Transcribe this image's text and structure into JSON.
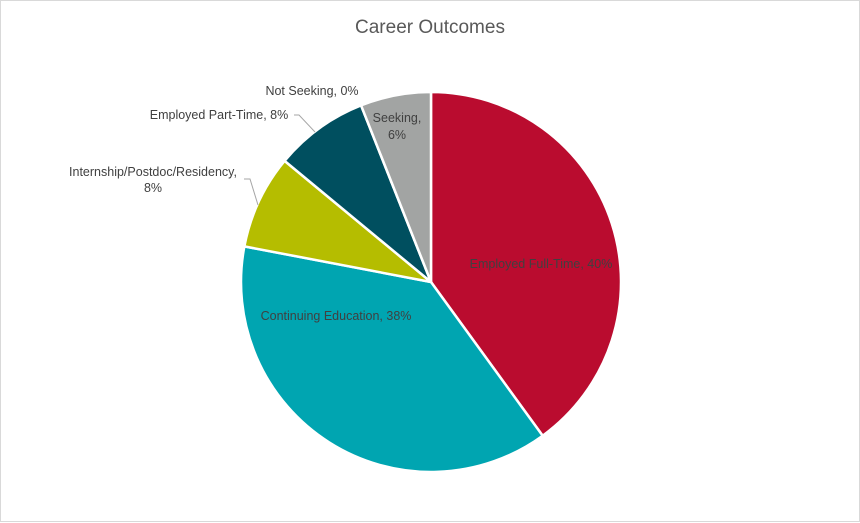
{
  "chart_data": {
    "type": "pie",
    "title": "Career Outcomes",
    "categories": [
      "Employed Full-Time",
      "Continuing Education",
      "Internship/Postdoc/Residency",
      "Employed Part-Time",
      "Not Seeking",
      "Seeking"
    ],
    "values": [
      40,
      38,
      8,
      8,
      0,
      6
    ],
    "unit": "%",
    "colors": [
      "#ba0c2f",
      "#00a5b1",
      "#b5bd00",
      "#004f5f",
      "#7f7f7f",
      "#a2a4a3"
    ],
    "start_angle_deg": 0,
    "direction": "clockwise",
    "legend": "none",
    "data_labels": [
      "Employed Full-Time, 40%",
      "Continuing Education, 38%",
      "Internship/Postdoc/Residency, 8%",
      "Employed Part-Time, 8%",
      "Not Seeking, 0%",
      "Seeking, 6%"
    ]
  },
  "labels": {
    "full_time": "Employed Full-Time, 40%",
    "continuing": "Continuing Education, 38%",
    "internship_line1": "Internship/Postdoc/Residency,",
    "internship_line2": "8%",
    "part_time": "Employed Part-Time, 8%",
    "not_seeking": "Not Seeking, 0%",
    "seeking_line1": "Seeking,",
    "seeking_line2": "6%"
  }
}
